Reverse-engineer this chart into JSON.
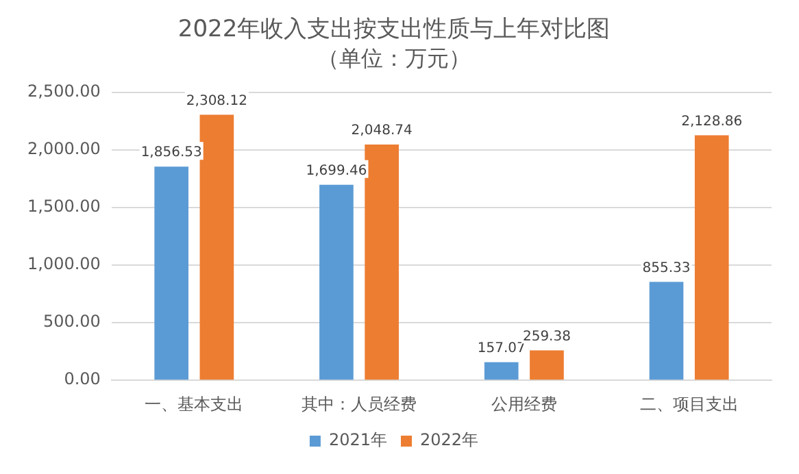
{
  "chart_data": {
    "type": "bar",
    "title": "2022年收入支出按支出性质与上年对比图",
    "subtitle": "（单位：万元）",
    "categories": [
      "一、基本支出",
      "其中：人员经费",
      "公用经费",
      "二、项目支出"
    ],
    "series": [
      {
        "name": "2021年",
        "color": "#5b9bd5",
        "values": [
          1856.53,
          1699.46,
          157.07,
          855.33
        ],
        "value_labels": [
          "1,856.53",
          "1,699.46",
          "157.07",
          "855.33"
        ]
      },
      {
        "name": "2022年",
        "color": "#ed7d31",
        "values": [
          2308.12,
          2048.74,
          259.38,
          2128.86
        ],
        "value_labels": [
          "2,308.12",
          "2,048.74",
          "259.38",
          "2,128.86"
        ]
      }
    ],
    "ylim": [
      0,
      2500
    ],
    "yticks": [
      {
        "value": 0,
        "label": "0.00"
      },
      {
        "value": 500,
        "label": "500.00"
      },
      {
        "value": 1000,
        "label": "1,000.00"
      },
      {
        "value": 1500,
        "label": "1,500.00"
      },
      {
        "value": 2000,
        "label": "2,000.00"
      },
      {
        "value": 2500,
        "label": "2,500.00"
      }
    ],
    "grid": "y",
    "legend": "bottom"
  }
}
